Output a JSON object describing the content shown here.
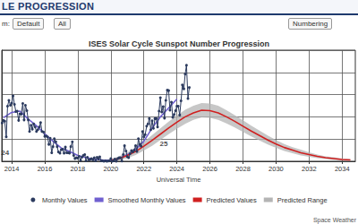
{
  "page": {
    "header": "LE PROGRESSION",
    "controls": [
      "m:",
      "Default",
      "All",
      "Numbering"
    ],
    "footer": "Space Weather"
  },
  "chart_data": {
    "type": "line",
    "title": "ISES Solar Cycle Sunspot Number Progression",
    "x_label": "Universal Time",
    "xlim": [
      2013.4,
      2034.8
    ],
    "xticks": [
      2014,
      2016,
      2018,
      2020,
      2022,
      2024,
      2026,
      2028,
      2030,
      2032,
      2034
    ],
    "ylim": [
      0,
      250
    ],
    "yticks": [
      0,
      50,
      100,
      150,
      200,
      250
    ],
    "tick_labels": "x",
    "grid": true,
    "legend": "bottom",
    "annotations": [
      {
        "text": "24",
        "x": 2013.6,
        "y": 20
      },
      {
        "text": "25",
        "x": 2023.2,
        "y": 40
      }
    ],
    "series": [
      {
        "name": "Monthly Values",
        "type": "line",
        "color": "#2b3a5e",
        "marker": "circle",
        "line_style": "solid",
        "x": [
          2013.42,
          2013.5,
          2013.58,
          2013.67,
          2013.75,
          2013.83,
          2013.92,
          2014,
          2014.08,
          2014.17,
          2014.25,
          2014.33,
          2014.42,
          2014.5,
          2014.58,
          2014.67,
          2014.75,
          2014.83,
          2014.92,
          2015,
          2015.08,
          2015.17,
          2015.25,
          2015.33,
          2015.42,
          2015.5,
          2015.58,
          2015.67,
          2015.75,
          2015.83,
          2015.92,
          2016,
          2016.08,
          2016.17,
          2016.25,
          2016.33,
          2016.42,
          2016.5,
          2016.58,
          2016.67,
          2016.75,
          2016.83,
          2016.92,
          2017,
          2017.08,
          2017.17,
          2017.25,
          2017.33,
          2017.42,
          2017.5,
          2017.58,
          2017.67,
          2017.75,
          2017.83,
          2017.92,
          2018,
          2018.08,
          2018.17,
          2018.25,
          2018.33,
          2018.42,
          2018.5,
          2018.58,
          2018.67,
          2018.75,
          2018.83,
          2018.92,
          2019,
          2019.08,
          2019.17,
          2019.25,
          2019.33,
          2019.42,
          2019.5,
          2019.58,
          2019.67,
          2019.75,
          2019.83,
          2019.92,
          2020,
          2020.08,
          2020.17,
          2020.25,
          2020.33,
          2020.42,
          2020.5,
          2020.58,
          2020.67,
          2020.75,
          2020.83,
          2020.92,
          2021,
          2021.08,
          2021.17,
          2021.25,
          2021.33,
          2021.42,
          2021.5,
          2021.58,
          2021.67,
          2021.75,
          2021.83,
          2021.92,
          2022,
          2022.08,
          2022.17,
          2022.25,
          2022.33,
          2022.42,
          2022.5,
          2022.58,
          2022.67,
          2022.75,
          2022.83,
          2022.92,
          2023,
          2023.08,
          2023.17,
          2023.25,
          2023.33,
          2023.42,
          2023.5,
          2023.58,
          2023.67,
          2023.75,
          2023.83,
          2023.92,
          2024,
          2024.08,
          2024.17,
          2024.25,
          2024.33,
          2024.42,
          2024.5,
          2024.58,
          2024.67,
          2024.75
        ],
        "values": [
          86,
          92,
          90,
          55,
          124,
          137,
          126,
          131,
          147,
          128,
          112,
          113,
          92,
          107,
          106,
          130,
          93,
          126,
          114,
          93,
          67,
          81,
          72,
          84,
          77,
          67,
          71,
          77,
          87,
          67,
          66,
          56,
          57,
          55,
          38,
          52,
          19,
          33,
          51,
          44,
          33,
          21,
          18,
          26,
          27,
          18,
          32,
          19,
          19,
          18,
          33,
          44,
          13,
          6,
          8,
          7,
          11,
          2,
          9,
          13,
          15,
          1,
          9,
          3,
          4,
          6,
          3,
          8,
          1,
          9,
          5,
          10,
          1,
          1,
          0,
          1,
          0,
          0.5,
          1.5,
          6,
          0,
          1.5,
          5,
          0.2,
          6,
          8,
          8,
          0.6,
          15,
          35,
          23,
          10,
          8,
          17,
          24,
          21,
          25,
          35,
          22,
          51,
          38,
          34,
          67,
          55,
          60,
          79,
          84,
          96,
          71,
          91,
          74,
          96,
          96,
          77,
          113,
          143,
          111,
          123,
          97,
          137,
          160,
          159,
          115,
          133,
          99,
          105,
          114,
          124,
          124,
          104,
          136,
          172,
          163,
          196,
          216,
          141,
          166
        ]
      },
      {
        "name": "Smoothed Monthly Values",
        "type": "line",
        "color": "#7060d0",
        "marker": "none",
        "line_style": "solid",
        "x": [
          2013.5,
          2014,
          2014.5,
          2015,
          2015.5,
          2016,
          2016.5,
          2017,
          2017.5,
          2018,
          2018.5,
          2019,
          2019.5,
          2020,
          2020.5,
          2021,
          2021.5,
          2022,
          2022.5,
          2023,
          2023.5,
          2024
        ],
        "values": [
          98,
          110,
          113,
          95,
          80,
          62,
          45,
          30,
          22,
          13,
          8,
          5,
          3,
          2,
          6,
          15,
          27,
          45,
          75,
          100,
          120,
          140
        ]
      },
      {
        "name": "Predicted Values",
        "type": "line",
        "color": "#d02020",
        "marker": "none",
        "line_style": "solid",
        "x": [
          2020,
          2020.5,
          2021,
          2021.5,
          2022,
          2022.5,
          2023,
          2023.5,
          2024,
          2024.5,
          2025,
          2025.5,
          2026,
          2026.5,
          2027,
          2027.5,
          2028,
          2028.5,
          2029,
          2029.5,
          2030,
          2030.5,
          2031,
          2031.5,
          2032,
          2032.5,
          2033,
          2033.5,
          2034,
          2034.5
        ],
        "values": [
          2,
          6,
          13,
          22,
          34,
          47,
          61,
          75,
          88,
          100,
          109,
          115,
          114,
          109,
          100,
          90,
          79,
          68,
          58,
          48,
          39,
          31,
          25,
          19,
          15,
          11,
          8,
          6,
          4,
          3
        ]
      },
      {
        "name": "Predicted Range",
        "type": "band",
        "color": "#b4b4b4",
        "x": [
          2020,
          2020.5,
          2021,
          2021.5,
          2022,
          2022.5,
          2023,
          2023.5,
          2024,
          2024.5,
          2025,
          2025.5,
          2026,
          2026.5,
          2027,
          2027.5,
          2028,
          2028.5,
          2029,
          2029.5,
          2030,
          2030.5,
          2031,
          2031.5,
          2032,
          2032.5,
          2033,
          2033.5,
          2034,
          2034.5
        ],
        "low": [
          0,
          2,
          7,
          14,
          24,
          35,
          48,
          61,
          73,
          84,
          93,
          99,
          98,
          93,
          85,
          76,
          66,
          56,
          47,
          38,
          30,
          23,
          18,
          13,
          10,
          7,
          5,
          3,
          2,
          1
        ],
        "high": [
          5,
          11,
          20,
          31,
          44,
          59,
          74,
          89,
          103,
          116,
          125,
          131,
          130,
          125,
          115,
          104,
          92,
          80,
          69,
          58,
          48,
          39,
          32,
          26,
          20,
          15,
          11,
          9,
          6,
          5
        ]
      }
    ]
  }
}
